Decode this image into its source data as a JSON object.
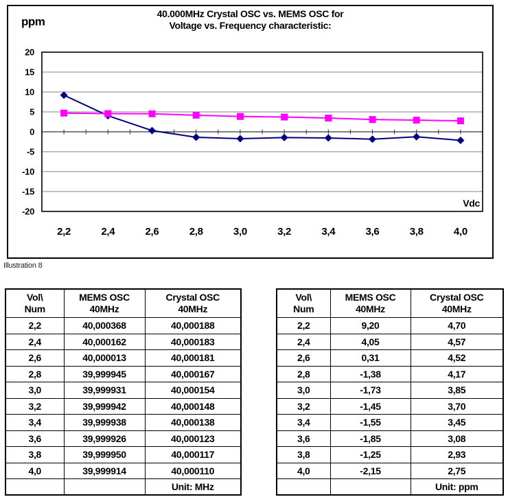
{
  "figure": {
    "y_unit": "ppm",
    "title_line1": "40.000MHz Crystal OSC vs. MEMS OSC for",
    "title_line2": "Voltage vs. Frequency characteristic:",
    "x_unit": "Vdc",
    "caption": "Illustration 8"
  },
  "chart_data": {
    "type": "line",
    "title": "40.000MHz Crystal OSC vs. MEMS OSC for Voltage vs. Frequency characteristic:",
    "ylabel": "ppm",
    "xlabel": "Vdc",
    "ylim": [
      -20,
      20
    ],
    "ytick_step": 5,
    "grid": true,
    "legend": "none",
    "categories": [
      "2,2",
      "2,4",
      "2,6",
      "2,8",
      "3,0",
      "3,2",
      "3,4",
      "3,6",
      "3,8",
      "4,0"
    ],
    "series": [
      {
        "name": "MEMS OSC 40MHz",
        "color": "#000080",
        "marker": "diamond",
        "values": [
          9.2,
          4.05,
          0.31,
          -1.38,
          -1.73,
          -1.45,
          -1.55,
          -1.85,
          -1.25,
          -2.15
        ]
      },
      {
        "name": "Crystal OSC 40MHz",
        "color": "#FF00FF",
        "marker": "square",
        "values": [
          4.7,
          4.57,
          4.52,
          4.17,
          3.85,
          3.7,
          3.45,
          3.08,
          2.93,
          2.75
        ]
      }
    ]
  },
  "tables": {
    "mhz": {
      "headers": [
        "Vol\\\nNum",
        "MEMS OSC\n40MHz",
        "Crystal OSC\n40MHz"
      ],
      "rows": [
        [
          "2,2",
          "40,000368",
          "40,000188"
        ],
        [
          "2,4",
          "40,000162",
          "40,000183"
        ],
        [
          "2,6",
          "40,000013",
          "40,000181"
        ],
        [
          "2,8",
          "39,999945",
          "40,000167"
        ],
        [
          "3,0",
          "39,999931",
          "40,000154"
        ],
        [
          "3,2",
          "39,999942",
          "40,000148"
        ],
        [
          "3,4",
          "39,999938",
          "40,000138"
        ],
        [
          "3,6",
          "39,999926",
          "40,000123"
        ],
        [
          "3,8",
          "39,999950",
          "40,000117"
        ],
        [
          "4,0",
          "39,999914",
          "40,000110"
        ],
        [
          "",
          "",
          "Unit: MHz"
        ]
      ]
    },
    "ppm": {
      "headers": [
        "Vol\\\nNum",
        "MEMS OSC\n40MHz",
        "Crystal OSC\n40MHz"
      ],
      "rows": [
        [
          "2,2",
          "9,20",
          "4,70"
        ],
        [
          "2,4",
          "4,05",
          "4,57"
        ],
        [
          "2,6",
          "0,31",
          "4,52"
        ],
        [
          "2,8",
          "-1,38",
          "4,17"
        ],
        [
          "3,0",
          "-1,73",
          "3,85"
        ],
        [
          "3,2",
          "-1,45",
          "3,70"
        ],
        [
          "3,4",
          "-1,55",
          "3,45"
        ],
        [
          "3,6",
          "-1,85",
          "3,08"
        ],
        [
          "3,8",
          "-1,25",
          "2,93"
        ],
        [
          "4,0",
          "-2,15",
          "2,75"
        ],
        [
          "",
          "",
          "Unit: ppm"
        ]
      ]
    }
  }
}
